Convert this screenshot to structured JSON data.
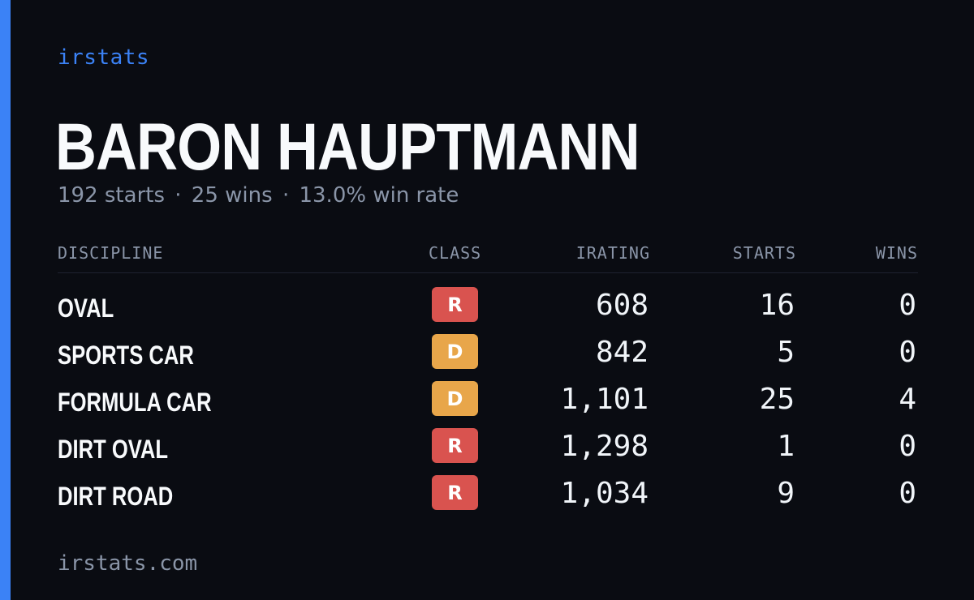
{
  "brand": "irstats",
  "driver": {
    "name": "BARON HAUPTMANN"
  },
  "summary": {
    "starts": "192 starts",
    "wins": "25 wins",
    "win_rate": "13.0% win rate",
    "separator": "·"
  },
  "table": {
    "headers": {
      "discipline": "DISCIPLINE",
      "class": "CLASS",
      "irating": "IRATING",
      "starts": "STARTS",
      "wins": "WINS"
    },
    "rows": [
      {
        "discipline": "OVAL",
        "class": "R",
        "class_color": "#d9534f",
        "irating": "608",
        "starts": "16",
        "wins": "0"
      },
      {
        "discipline": "SPORTS CAR",
        "class": "D",
        "class_color": "#e8a64a",
        "irating": "842",
        "starts": "5",
        "wins": "0"
      },
      {
        "discipline": "FORMULA CAR",
        "class": "D",
        "class_color": "#e8a64a",
        "irating": "1,101",
        "starts": "25",
        "wins": "4"
      },
      {
        "discipline": "DIRT OVAL",
        "class": "R",
        "class_color": "#d9534f",
        "irating": "1,298",
        "starts": "1",
        "wins": "0"
      },
      {
        "discipline": "DIRT ROAD",
        "class": "R",
        "class_color": "#d9534f",
        "irating": "1,034",
        "starts": "9",
        "wins": "0"
      }
    ]
  },
  "footer": "irstats.com",
  "colors": {
    "accent": "#3b82f6",
    "background": "#0a0c12"
  }
}
